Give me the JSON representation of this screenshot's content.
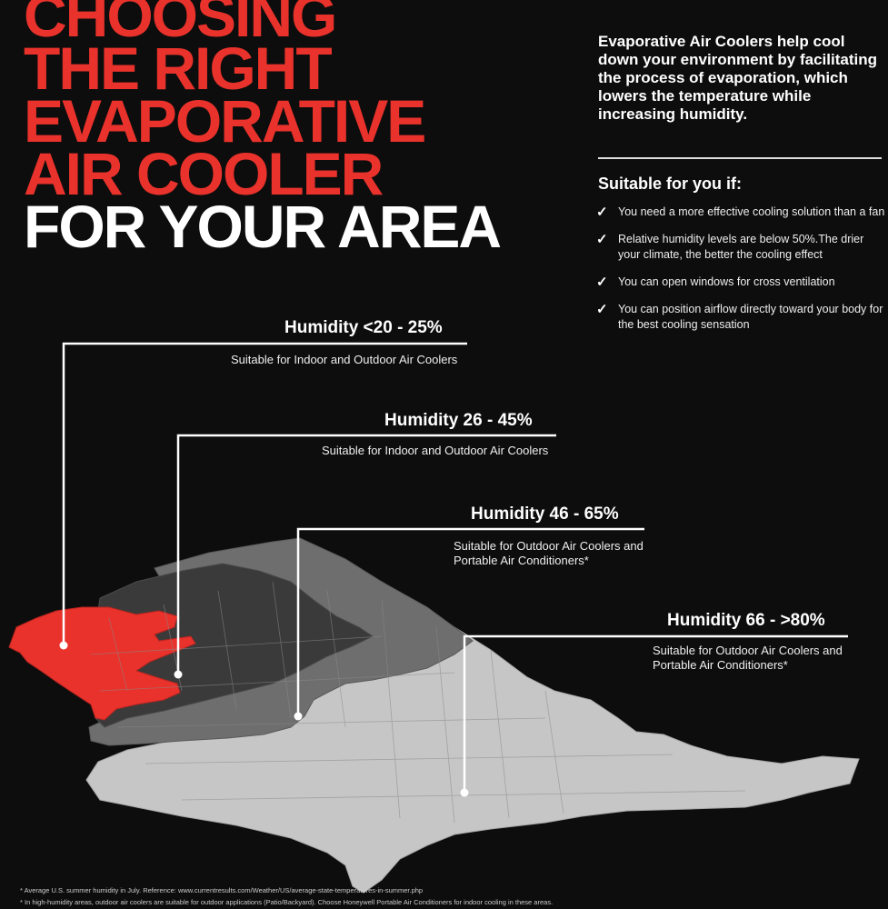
{
  "title": {
    "red_lines": [
      "CHOOSING",
      "THE RIGHT",
      "EVAPORATIVE",
      "AIR COOLER"
    ],
    "white_line": "FOR YOUR AREA"
  },
  "intro": "Evaporative Air Coolers help cool down your environment by facilitating the process of evaporation, which lowers the temperature while increasing humidity.",
  "suitable": {
    "heading": "Suitable for you if:",
    "items": [
      "You need a more effective cooling solution than a fan",
      "Relative humidity levels are below 50%.The drier your climate, the better the cooling effect",
      "You can open windows for cross ventilation",
      "You can position airflow directly toward your body for the best cooling sensation"
    ]
  },
  "zones": [
    {
      "title": "Humidity <20 - 25%",
      "desc": "Suitable for Indoor and Outdoor Air Coolers",
      "color": "#e8322b"
    },
    {
      "title": "Humidity  26 - 45%",
      "desc": "Suitable for Indoor and Outdoor Air Coolers",
      "color": "#3a3a3a"
    },
    {
      "title": "Humidity  46 - 65%",
      "desc": "Suitable for Outdoor Air Coolers and Portable Air Conditioners*",
      "color": "#6e6e6e"
    },
    {
      "title": "Humidity  66 - >80%",
      "desc": "Suitable for Outdoor Air Coolers and Portable Air Conditioners*",
      "color": "#c6c6c6"
    }
  ],
  "footnotes": [
    "* Average U.S. summer humidity in July. Reference: www.currentresults.com/Weather/US/average-state-temperatures-in-summer.php",
    "* In high-humidity areas, outdoor air coolers are suitable for  outdoor applications (Patio/Backyard). Choose Honeywell Portable Air Conditioners for indoor cooling in these areas."
  ],
  "colors": {
    "accent": "#e8322b",
    "background": "#0d0d0d"
  },
  "icons": {
    "check": "check-icon"
  }
}
